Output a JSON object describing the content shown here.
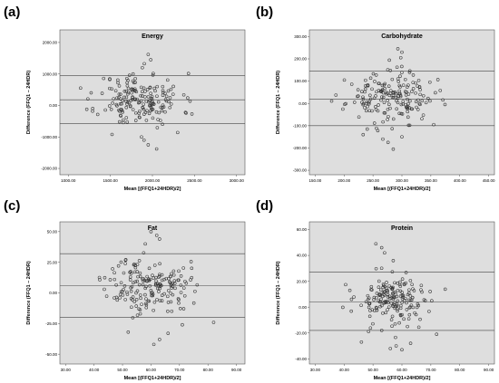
{
  "chart_data": [
    {
      "type": "scatter",
      "letter": "(a)",
      "title": "Energy",
      "xlabel": "Mean [(FFQ1+24HDR)/2]",
      "ylabel": "Difference (FFQ1 – 24HDR)",
      "xlim": [
        900,
        3100
      ],
      "ylim": [
        -2200,
        2400
      ],
      "xticks": [
        1000,
        1500,
        2000,
        2500,
        3000
      ],
      "yticks": [
        -2000,
        -1000,
        0,
        1000,
        2000
      ],
      "tick_format": "2dp",
      "ref_lines": [
        950,
        180,
        -580
      ],
      "outliers": [
        [
          1950,
          1620
        ],
        [
          1980,
          1450
        ],
        [
          1880,
          1200
        ],
        [
          1770,
          1000
        ],
        [
          1520,
          -920
        ],
        [
          1900,
          -1100
        ],
        [
          1950,
          -1250
        ],
        [
          2050,
          -1380
        ],
        [
          1870,
          -1000
        ],
        [
          2300,
          -860
        ]
      ],
      "cluster": {
        "x_center": 1850,
        "x_spread": 800,
        "y_center": 180,
        "y_spread": 420,
        "count": 180,
        "seed": 11
      }
    },
    {
      "type": "scatter",
      "letter": "(b)",
      "title": "Carbohydrate",
      "xlabel": "Mean [(FFQ1+24HDR)/2]",
      "ylabel": "Difference (FFQ1 – 24HDR)",
      "xlim": [
        140,
        460
      ],
      "ylim": [
        -320,
        330
      ],
      "xticks": [
        150,
        200,
        250,
        300,
        350,
        400,
        450
      ],
      "yticks": [
        -300,
        -200,
        -100,
        0,
        100,
        200,
        300
      ],
      "tick_format": "2dp",
      "ref_lines": [
        145,
        20,
        -100
      ],
      "outliers": [
        [
          293,
          245
        ],
        [
          300,
          230
        ],
        [
          298,
          205
        ],
        [
          280,
          148
        ],
        [
          233,
          -140
        ],
        [
          267,
          -160
        ],
        [
          276,
          -175
        ],
        [
          285,
          -205
        ],
        [
          300,
          -150
        ],
        [
          355,
          -95
        ]
      ],
      "cluster": {
        "x_center": 280,
        "x_spread": 120,
        "y_center": 25,
        "y_spread": 55,
        "count": 180,
        "seed": 23
      }
    },
    {
      "type": "scatter",
      "letter": "(c)",
      "title": "Fat",
      "xlabel": "Mean [(FFQ1+24HDR)/2]",
      "ylabel": "Difference (FFQ1 – 24HDR)",
      "xlim": [
        28,
        93
      ],
      "ylim": [
        -58,
        58
      ],
      "xticks": [
        30,
        40,
        50,
        60,
        70,
        80,
        90
      ],
      "yticks": [
        -50,
        -25,
        0,
        25,
        50
      ],
      "tick_format": "2dp",
      "ref_lines": [
        32,
        6,
        -20
      ],
      "outliers": [
        [
          60,
          50
        ],
        [
          62,
          47
        ],
        [
          63,
          44
        ],
        [
          58,
          40
        ],
        [
          52,
          -32
        ],
        [
          61,
          -42
        ],
        [
          63,
          -38
        ],
        [
          66,
          -33
        ],
        [
          71,
          -26
        ],
        [
          82,
          -24
        ]
      ],
      "cluster": {
        "x_center": 59,
        "x_spread": 23,
        "y_center": 6,
        "y_spread": 11,
        "count": 180,
        "seed": 37
      }
    },
    {
      "type": "scatter",
      "letter": "(d)",
      "title": "Protein",
      "xlabel": "Mean [(FFQ1+24HDR)/2]",
      "ylabel": "Difference (FFQ1 – 24HDR)",
      "xlim": [
        28,
        92
      ],
      "ylim": [
        -44,
        66
      ],
      "xticks": [
        30,
        40,
        50,
        60,
        70,
        80,
        90
      ],
      "yticks": [
        -40,
        -20,
        0,
        20,
        40,
        60
      ],
      "tick_format": "2dp",
      "ref_lines": [
        27,
        4,
        -18
      ],
      "outliers": [
        [
          51,
          49
        ],
        [
          53,
          46
        ],
        [
          54,
          42
        ],
        [
          57,
          36
        ],
        [
          46,
          -27
        ],
        [
          56,
          -32
        ],
        [
          60,
          -33
        ],
        [
          58,
          -30
        ],
        [
          72,
          -21
        ],
        [
          63,
          -28
        ]
      ],
      "cluster": {
        "x_center": 57,
        "x_spread": 21,
        "y_center": 5,
        "y_spread": 10,
        "count": 180,
        "seed": 53
      }
    }
  ]
}
